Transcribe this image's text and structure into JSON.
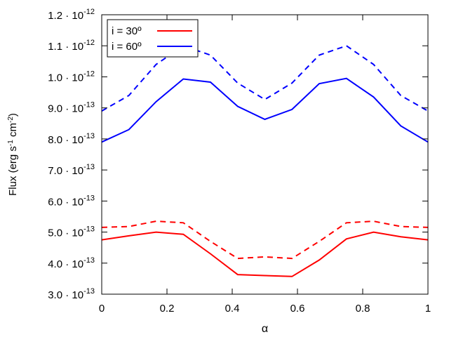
{
  "chart_data": {
    "type": "line",
    "title": "",
    "xlabel": "α",
    "ylabel": "Flux (erg s⁻¹ cm⁻²)",
    "xlim": [
      0,
      1
    ],
    "ylim": [
      3e-13,
      1.2e-12
    ],
    "x_ticks": [
      0,
      0.2,
      0.4,
      0.6,
      0.8,
      1
    ],
    "x_tick_labels": [
      "0",
      "0.2",
      "0.4",
      "0.6",
      "0.8",
      "1"
    ],
    "y_ticks": [
      3e-13,
      4e-13,
      5e-13,
      6e-13,
      7e-13,
      8e-13,
      9e-13,
      1e-12,
      1.1e-12,
      1.2e-12
    ],
    "y_tick_labels": [
      {
        "mantissa": "3.0 · 10",
        "exp": "-13"
      },
      {
        "mantissa": "4.0 · 10",
        "exp": "-13"
      },
      {
        "mantissa": "5.0 · 10",
        "exp": "-13"
      },
      {
        "mantissa": "6.0 · 10",
        "exp": "-13"
      },
      {
        "mantissa": "7.0 · 10",
        "exp": "-13"
      },
      {
        "mantissa": "8.0 · 10",
        "exp": "-13"
      },
      {
        "mantissa": "9.0 · 10",
        "exp": "-13"
      },
      {
        "mantissa": "1.0 · 10",
        "exp": "-12"
      },
      {
        "mantissa": "1.1 · 10",
        "exp": "-12"
      },
      {
        "mantissa": "1.2 · 10",
        "exp": "-12"
      }
    ],
    "legend": {
      "position": "top-left",
      "entries": [
        {
          "label": "i = 30º",
          "color": "#ff0000"
        },
        {
          "label": "i = 60º",
          "color": "#0000ff"
        }
      ]
    },
    "x": [
      0,
      0.0833,
      0.1667,
      0.25,
      0.3333,
      0.4167,
      0.5,
      0.5833,
      0.6667,
      0.75,
      0.8333,
      0.9167,
      1.0
    ],
    "series": [
      {
        "name": "i = 30º",
        "style": "solid",
        "color": "#ff0000",
        "values": [
          4.75e-13,
          4.88e-13,
          5e-13,
          4.93e-13,
          4.3e-13,
          3.63e-13,
          3.6e-13,
          3.57e-13,
          4.1e-13,
          4.78e-13,
          5e-13,
          4.85e-13,
          4.75e-13
        ]
      },
      {
        "name": "i = 30º (dashed)",
        "style": "dashed",
        "color": "#ff0000",
        "values": [
          5.15e-13,
          5.18e-13,
          5.35e-13,
          5.3e-13,
          4.7e-13,
          4.15e-13,
          4.2e-13,
          4.15e-13,
          4.7e-13,
          5.3e-13,
          5.35e-13,
          5.18e-13,
          5.15e-13
        ]
      },
      {
        "name": "i = 60º",
        "style": "solid",
        "color": "#0000ff",
        "values": [
          7.9e-13,
          8.3e-13,
          9.2e-13,
          9.93e-13,
          9.83e-13,
          9.05e-13,
          8.63e-13,
          8.95e-13,
          9.78e-13,
          9.95e-13,
          9.35e-13,
          8.42e-13,
          7.9e-13
        ]
      },
      {
        "name": "i = 60º (dashed)",
        "style": "dashed",
        "color": "#0000ff",
        "values": [
          8.9e-13,
          9.4e-13,
          1.04e-12,
          1.1e-12,
          1.07e-12,
          9.8e-13,
          9.27e-13,
          9.8e-13,
          1.07e-12,
          1.1e-12,
          1.04e-12,
          9.4e-13,
          8.9e-13
        ]
      }
    ]
  }
}
